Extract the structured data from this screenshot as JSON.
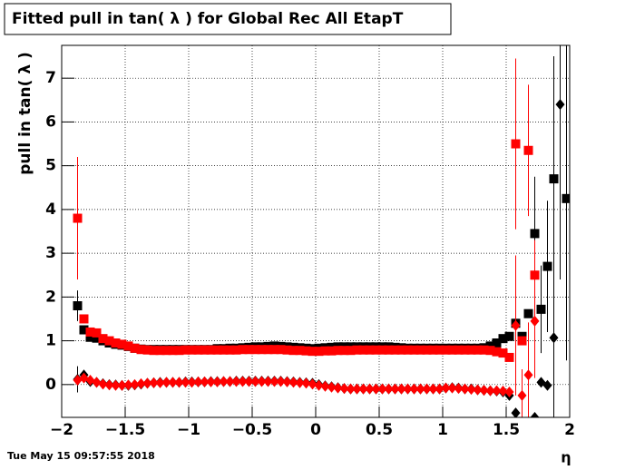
{
  "chart_data": {
    "type": "scatter",
    "title": "Fitted pull in tan( λ ) for Global Rec All EtapT",
    "y_label": "pull in tan( λ )",
    "x_label": "η",
    "timestamp": "Tue May 15 09:57:55 2018",
    "grid": true,
    "xlim": [
      -2,
      2
    ],
    "ylim": [
      -0.75,
      7.75
    ],
    "xticks": [
      {
        "value": -2,
        "label": "−2"
      },
      {
        "value": -1.5,
        "label": "−1.5"
      },
      {
        "value": -1,
        "label": "−1"
      },
      {
        "value": -0.5,
        "label": "−0.5"
      },
      0,
      0.5,
      1,
      1.5,
      2
    ],
    "yticks": [
      0,
      1,
      2,
      3,
      4,
      5,
      6,
      7
    ],
    "x": [
      -1.875,
      -1.825,
      -1.775,
      -1.725,
      -1.675,
      -1.625,
      -1.575,
      -1.525,
      -1.475,
      -1.425,
      -1.375,
      -1.325,
      -1.275,
      -1.225,
      -1.175,
      -1.125,
      -1.075,
      -1.025,
      -0.975,
      -0.925,
      -0.875,
      -0.825,
      -0.775,
      -0.725,
      -0.675,
      -0.625,
      -0.575,
      -0.525,
      -0.475,
      -0.425,
      -0.375,
      -0.325,
      -0.275,
      -0.225,
      -0.175,
      -0.125,
      -0.075,
      -0.025,
      0.025,
      0.075,
      0.125,
      0.175,
      0.225,
      0.275,
      0.325,
      0.375,
      0.425,
      0.475,
      0.525,
      0.575,
      0.625,
      0.675,
      0.725,
      0.775,
      0.825,
      0.875,
      0.925,
      0.975,
      1.025,
      1.075,
      1.125,
      1.175,
      1.225,
      1.275,
      1.325,
      1.375,
      1.425,
      1.475,
      1.525,
      1.575,
      1.625,
      1.675,
      1.725,
      1.775,
      1.825,
      1.875,
      1.925,
      1.975
    ],
    "series": [
      {
        "color": "#000000",
        "marker": "square",
        "values": [
          1.8,
          1.25,
          1.08,
          1.06,
          1.0,
          0.95,
          0.92,
          0.9,
          0.87,
          0.83,
          0.81,
          0.8,
          0.8,
          0.8,
          0.8,
          0.8,
          0.8,
          0.8,
          0.8,
          0.8,
          0.8,
          0.8,
          0.82,
          0.82,
          0.83,
          0.83,
          0.84,
          0.85,
          0.86,
          0.86,
          0.87,
          0.88,
          0.87,
          0.86,
          0.85,
          0.84,
          0.83,
          0.82,
          0.83,
          0.84,
          0.85,
          0.86,
          0.86,
          0.86,
          0.86,
          0.86,
          0.86,
          0.86,
          0.86,
          0.86,
          0.85,
          0.84,
          0.83,
          0.83,
          0.83,
          0.83,
          0.83,
          0.83,
          0.83,
          0.83,
          0.83,
          0.83,
          0.83,
          0.83,
          0.84,
          0.88,
          0.95,
          1.05,
          1.1,
          1.4,
          1.1,
          1.62,
          3.45,
          1.72,
          2.7,
          4.7,
          null,
          4.25
        ],
        "errors": [
          0.35,
          null,
          null,
          null,
          null,
          null,
          null,
          null,
          null,
          null,
          null,
          null,
          null,
          null,
          null,
          null,
          null,
          null,
          null,
          null,
          null,
          null,
          null,
          null,
          null,
          null,
          null,
          null,
          null,
          null,
          null,
          null,
          null,
          null,
          null,
          null,
          null,
          null,
          null,
          null,
          null,
          null,
          null,
          null,
          null,
          null,
          null,
          null,
          null,
          null,
          null,
          null,
          null,
          null,
          null,
          null,
          null,
          null,
          null,
          null,
          null,
          null,
          null,
          null,
          null,
          null,
          null,
          null,
          null,
          0.4,
          null,
          null,
          1.3,
          1.0,
          1.5,
          2.8,
          null,
          3.7
        ]
      },
      {
        "color": "#ff0000",
        "marker": "square",
        "values": [
          3.8,
          1.5,
          1.2,
          1.18,
          1.05,
          1.0,
          0.95,
          0.92,
          0.88,
          0.83,
          0.8,
          0.79,
          0.78,
          0.78,
          0.78,
          0.78,
          0.78,
          0.79,
          0.79,
          0.79,
          0.79,
          0.79,
          0.79,
          0.79,
          0.79,
          0.79,
          0.8,
          0.8,
          0.8,
          0.8,
          0.8,
          0.8,
          0.8,
          0.79,
          0.78,
          0.78,
          0.77,
          0.76,
          0.76,
          0.77,
          0.77,
          0.78,
          0.78,
          0.78,
          0.79,
          0.79,
          0.79,
          0.79,
          0.79,
          0.79,
          0.79,
          0.79,
          0.79,
          0.79,
          0.79,
          0.79,
          0.79,
          0.79,
          0.79,
          0.79,
          0.79,
          0.79,
          0.79,
          0.79,
          0.79,
          0.78,
          0.75,
          0.72,
          0.62,
          5.5,
          1.0,
          5.35,
          2.5,
          null,
          null,
          null,
          null,
          null
        ],
        "errors": [
          1.4,
          null,
          null,
          null,
          null,
          null,
          null,
          null,
          null,
          null,
          null,
          null,
          null,
          null,
          null,
          null,
          null,
          null,
          null,
          null,
          null,
          null,
          null,
          null,
          null,
          null,
          null,
          null,
          null,
          null,
          null,
          null,
          null,
          null,
          null,
          null,
          null,
          null,
          null,
          null,
          null,
          null,
          null,
          null,
          null,
          null,
          null,
          null,
          null,
          null,
          null,
          null,
          null,
          null,
          null,
          null,
          null,
          null,
          null,
          null,
          null,
          null,
          null,
          null,
          null,
          null,
          null,
          null,
          null,
          1.95,
          null,
          1.5,
          0.8,
          null,
          null,
          null,
          null,
          null
        ]
      },
      {
        "color": "#000000",
        "marker": "diamond",
        "values": [
          0.12,
          0.22,
          0.07,
          0.05,
          0.02,
          0.0,
          -0.01,
          -0.02,
          -0.02,
          -0.01,
          0.01,
          0.03,
          0.04,
          0.05,
          0.05,
          0.05,
          0.05,
          0.06,
          0.06,
          0.06,
          0.06,
          0.07,
          0.07,
          0.07,
          0.07,
          0.08,
          0.08,
          0.08,
          0.08,
          0.08,
          0.08,
          0.08,
          0.08,
          0.07,
          0.06,
          0.05,
          0.04,
          0.03,
          0.0,
          -0.03,
          -0.05,
          -0.07,
          -0.09,
          -0.1,
          -0.1,
          -0.1,
          -0.1,
          -0.1,
          -0.1,
          -0.1,
          -0.1,
          -0.1,
          -0.1,
          -0.1,
          -0.1,
          -0.1,
          -0.1,
          -0.1,
          -0.08,
          -0.07,
          -0.08,
          -0.1,
          -0.1,
          -0.12,
          -0.13,
          -0.14,
          -0.15,
          -0.17,
          -0.25,
          -0.65,
          null,
          null,
          -0.75,
          0.05,
          -0.02,
          1.07,
          6.4,
          null
        ],
        "errors": [
          0.3,
          null,
          null,
          null,
          null,
          null,
          null,
          null,
          null,
          null,
          null,
          null,
          null,
          null,
          null,
          null,
          null,
          null,
          null,
          null,
          null,
          null,
          null,
          null,
          null,
          null,
          null,
          null,
          null,
          null,
          null,
          null,
          null,
          null,
          null,
          null,
          null,
          null,
          null,
          null,
          null,
          null,
          null,
          null,
          null,
          null,
          null,
          null,
          null,
          null,
          null,
          null,
          null,
          null,
          null,
          null,
          null,
          null,
          null,
          null,
          null,
          null,
          null,
          null,
          null,
          null,
          null,
          null,
          null,
          null,
          null,
          null,
          null,
          null,
          null,
          2.0,
          4.0,
          null
        ]
      },
      {
        "color": "#ff0000",
        "marker": "diamond",
        "values": [
          0.1,
          0.15,
          0.1,
          0.05,
          0.01,
          -0.01,
          -0.02,
          -0.02,
          -0.01,
          0.0,
          0.02,
          0.03,
          0.04,
          0.04,
          0.05,
          0.05,
          0.05,
          0.05,
          0.05,
          0.06,
          0.06,
          0.06,
          0.06,
          0.07,
          0.07,
          0.07,
          0.07,
          0.07,
          0.07,
          0.07,
          0.07,
          0.07,
          0.07,
          0.06,
          0.05,
          0.04,
          0.03,
          0.01,
          -0.02,
          -0.04,
          -0.06,
          -0.08,
          -0.09,
          -0.1,
          -0.1,
          -0.1,
          -0.1,
          -0.1,
          -0.1,
          -0.1,
          -0.1,
          -0.1,
          -0.1,
          -0.1,
          -0.1,
          -0.1,
          -0.1,
          -0.1,
          -0.08,
          -0.08,
          -0.09,
          -0.1,
          -0.11,
          -0.12,
          -0.13,
          -0.14,
          -0.14,
          -0.15,
          -0.17,
          1.35,
          -0.25,
          0.22,
          1.45,
          null,
          null,
          null,
          null,
          null
        ],
        "errors": [
          null,
          null,
          null,
          null,
          null,
          null,
          null,
          null,
          null,
          null,
          null,
          null,
          null,
          null,
          null,
          null,
          null,
          null,
          null,
          null,
          null,
          null,
          null,
          null,
          null,
          null,
          null,
          null,
          null,
          null,
          null,
          null,
          null,
          null,
          null,
          null,
          null,
          null,
          null,
          null,
          null,
          null,
          null,
          null,
          null,
          null,
          null,
          null,
          null,
          null,
          null,
          null,
          null,
          null,
          null,
          null,
          null,
          null,
          null,
          null,
          null,
          null,
          null,
          null,
          null,
          null,
          null,
          null,
          null,
          1.6,
          0.6,
          1.2,
          1.3,
          null,
          null,
          null,
          null,
          null
        ]
      }
    ]
  }
}
